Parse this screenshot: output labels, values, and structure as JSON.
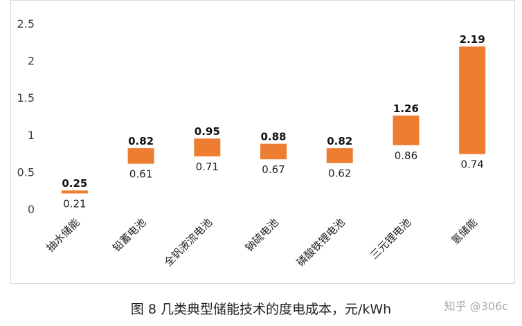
{
  "caption": "图 8 几类典型储能技术的度电成本，元/kWh",
  "watermark": "知乎 @306c",
  "colors": {
    "bar": "#ED7D31",
    "axis_text": "#404040",
    "frame": "#d9d9d9"
  },
  "chart_data": {
    "type": "bar",
    "subtype": "floating-range",
    "categories": [
      "抽水储能",
      "铅蓄电池",
      "全钒液流电池",
      "钠硫电池",
      "磷酸铁锂电池",
      "三元锂电池",
      "氢储能"
    ],
    "low": [
      0.21,
      0.61,
      0.71,
      0.67,
      0.62,
      0.86,
      0.74
    ],
    "high": [
      0.25,
      0.82,
      0.95,
      0.88,
      0.82,
      1.26,
      2.19
    ],
    "low_labels": [
      "0.21",
      "0.61",
      "0.71",
      "0.67",
      "0.62",
      "0.86",
      "0.74"
    ],
    "high_labels": [
      "0.25",
      "0.82",
      "0.95",
      "0.88",
      "0.82",
      "1.26",
      "2.19"
    ],
    "ylim": [
      0,
      2.5
    ],
    "yticks": [
      "0",
      "0.5",
      "1",
      "1.5",
      "2",
      "2.5"
    ],
    "grid": false,
    "legend": "none"
  }
}
